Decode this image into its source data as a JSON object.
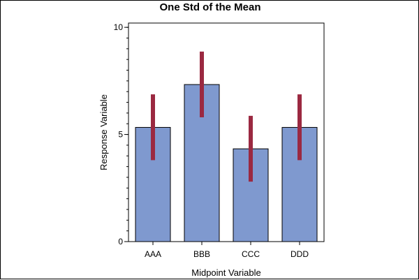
{
  "chart_data": {
    "type": "bar",
    "title": "One Std of the Mean",
    "xlabel": "Midpoint Variable",
    "ylabel": "Response Variable",
    "categories": [
      "AAA",
      "BBB",
      "CCC",
      "DDD"
    ],
    "values": [
      5.33,
      7.33,
      4.33,
      5.33
    ],
    "error_low": [
      3.8,
      5.8,
      2.8,
      3.8
    ],
    "error_high": [
      6.87,
      8.87,
      5.87,
      6.87
    ],
    "ylim": [
      0,
      10.2
    ],
    "yticks": [
      0,
      5,
      10
    ],
    "grid": false,
    "legend": "none",
    "colors": {
      "bar_fill": "#7f99cf",
      "bar_stroke": "#000000",
      "error_bar": "#9b2941",
      "axis": "#000000"
    }
  }
}
